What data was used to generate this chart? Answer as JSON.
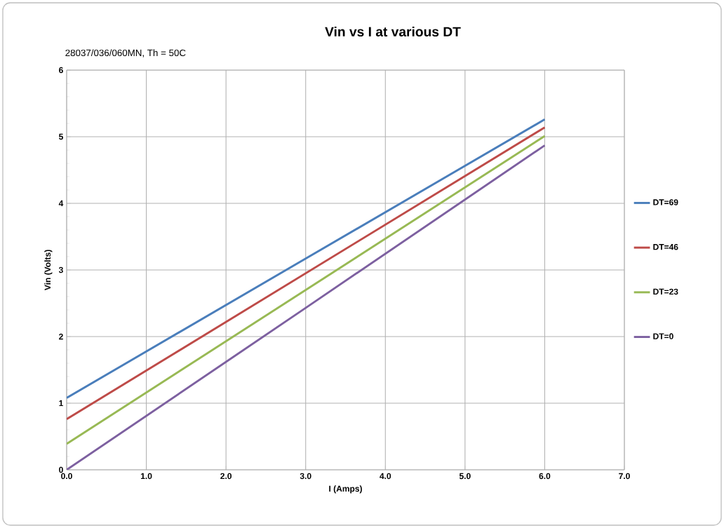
{
  "chart_data": {
    "type": "line",
    "title": "Vin vs I at various DT",
    "subtitle": "28037/036/060MN, Th = 50C",
    "xlabel": "I (Amps)",
    "ylabel": "Vin (Volts)",
    "x": [
      0,
      3,
      6
    ],
    "series": [
      {
        "name": "DT=69",
        "color": "#4a7ebb",
        "values": [
          1.08,
          3.17,
          5.26
        ]
      },
      {
        "name": "DT=46",
        "color": "#be4b48",
        "values": [
          0.76,
          2.95,
          5.14
        ]
      },
      {
        "name": "DT=23",
        "color": "#98b954",
        "values": [
          0.39,
          2.7,
          5.01
        ]
      },
      {
        "name": "DT=0",
        "color": "#7d60a0",
        "values": [
          0.0,
          2.43,
          4.87
        ]
      }
    ],
    "xlim": [
      0,
      7
    ],
    "ylim": [
      0,
      6
    ],
    "xticks": [
      {
        "value": 0,
        "label": "0.0"
      },
      {
        "value": 1,
        "label": "1.0"
      },
      {
        "value": 2,
        "label": "2.0"
      },
      {
        "value": 3,
        "label": "3.0"
      },
      {
        "value": 4,
        "label": "4.0"
      },
      {
        "value": 5,
        "label": "5.0"
      },
      {
        "value": 6,
        "label": "6.0"
      },
      {
        "value": 7,
        "label": "7.0"
      }
    ],
    "yticks": [
      0,
      1,
      2,
      3,
      4,
      5,
      6
    ],
    "grid": true,
    "legend": "right",
    "marker": "none",
    "line_style": "solid"
  }
}
